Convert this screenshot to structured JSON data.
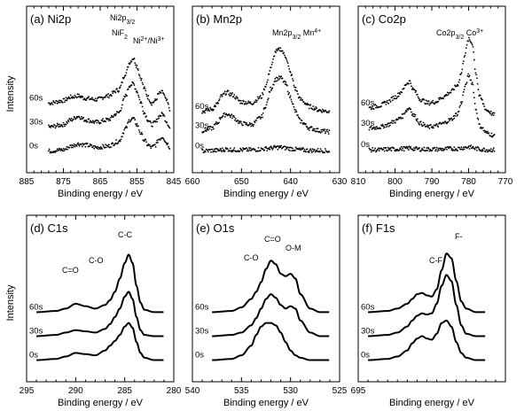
{
  "figure": {
    "ylabel_top": "Intensity",
    "ylabel_bottom": "Intensity",
    "xlabel": "Binding energy / eV"
  },
  "chart_data": [
    {
      "type": "line",
      "title": "(a) Ni2p",
      "xlabel": "Binding energy / eV",
      "ylabel": "Intensity",
      "xlim": [
        885,
        845
      ],
      "xticks": [
        885,
        875,
        865,
        855,
        845
      ],
      "style": "dots",
      "grid": false,
      "annotations": [
        "Ni2p3/2",
        "NiF2",
        "Ni2+/Ni3+"
      ],
      "series": [
        {
          "name": "60s",
          "x": [
            879,
            875,
            873,
            871,
            869,
            866,
            863,
            860,
            858,
            857,
            856,
            855,
            854,
            853,
            852,
            851,
            850,
            849,
            848,
            847,
            846
          ],
          "values": [
            0.8,
            0.84,
            0.9,
            0.92,
            0.88,
            0.86,
            0.92,
            1.02,
            1.3,
            1.48,
            1.55,
            1.42,
            1.22,
            1.04,
            0.9,
            0.8,
            0.84,
            0.96,
            0.98,
            0.84,
            0.7
          ]
        },
        {
          "name": "30s",
          "x": [
            879,
            875,
            873,
            871,
            869,
            866,
            863,
            860,
            858,
            857,
            856,
            855,
            854,
            853,
            852,
            851,
            850,
            849,
            848,
            847,
            846
          ],
          "values": [
            0.4,
            0.44,
            0.52,
            0.58,
            0.52,
            0.48,
            0.52,
            0.64,
            0.92,
            1.1,
            1.12,
            1.0,
            0.82,
            0.64,
            0.52,
            0.44,
            0.48,
            0.58,
            0.62,
            0.5,
            0.38
          ]
        },
        {
          "name": "0s",
          "x": [
            879,
            875,
            873,
            871,
            869,
            866,
            863,
            860,
            858,
            857,
            856,
            855,
            854,
            853,
            852,
            851,
            850,
            849,
            848,
            847,
            846
          ],
          "values": [
            0.0,
            0.02,
            0.08,
            0.12,
            0.1,
            0.06,
            0.08,
            0.16,
            0.38,
            0.52,
            0.54,
            0.44,
            0.3,
            0.18,
            0.1,
            0.06,
            0.1,
            0.2,
            0.24,
            0.14,
            0.06
          ]
        }
      ]
    },
    {
      "type": "line",
      "title": "(b) Mn2p",
      "xlabel": "Binding energy / eV",
      "ylabel": "Intensity",
      "xlim": [
        660,
        630
      ],
      "xticks": [
        660,
        650,
        640,
        630
      ],
      "style": "dots",
      "grid": false,
      "annotations": [
        "Mn2p3/2 Mn4+"
      ],
      "series": [
        {
          "name": "60s",
          "x": [
            658,
            656,
            655,
            654,
            653,
            652,
            650,
            648,
            646,
            645,
            644,
            643,
            642,
            641,
            640,
            639,
            638,
            636,
            634,
            632
          ],
          "values": [
            0.66,
            0.7,
            0.78,
            0.92,
            0.98,
            0.94,
            0.82,
            0.8,
            0.9,
            1.1,
            1.4,
            1.66,
            1.7,
            1.58,
            1.3,
            1.04,
            0.86,
            0.74,
            0.68,
            0.66
          ]
        },
        {
          "name": "30s",
          "x": [
            658,
            656,
            655,
            654,
            653,
            652,
            650,
            648,
            646,
            645,
            644,
            643,
            642,
            641,
            640,
            639,
            638,
            636,
            634,
            632
          ],
          "values": [
            0.34,
            0.38,
            0.46,
            0.58,
            0.62,
            0.58,
            0.46,
            0.44,
            0.56,
            0.76,
            1.04,
            1.2,
            1.22,
            1.12,
            0.9,
            0.66,
            0.5,
            0.38,
            0.34,
            0.32
          ]
        },
        {
          "name": "0s",
          "x": [
            658,
            656,
            655,
            654,
            653,
            652,
            650,
            648,
            646,
            645,
            644,
            643,
            642,
            641,
            640,
            639,
            638,
            636,
            634,
            632
          ],
          "values": [
            0.0,
            0.01,
            0.01,
            0.02,
            0.03,
            0.02,
            0.02,
            0.02,
            0.03,
            0.04,
            0.05,
            0.06,
            0.06,
            0.05,
            0.04,
            0.03,
            0.02,
            0.01,
            0.01,
            0.0
          ]
        }
      ]
    },
    {
      "type": "line",
      "title": "(c) Co2p",
      "xlabel": "Binding energy / eV",
      "ylabel": "Intensity",
      "xlim": [
        810,
        770
      ],
      "xticks": [
        810,
        800,
        790,
        780,
        770
      ],
      "style": "dots",
      "grid": false,
      "annotations": [
        "Co2p3/2 Co3+"
      ],
      "series": [
        {
          "name": "60s",
          "x": [
            807,
            804,
            802,
            800,
            798,
            797,
            796,
            795,
            793,
            791,
            789,
            787,
            785,
            783,
            782,
            781,
            780,
            779,
            778,
            777,
            775,
            773
          ],
          "values": [
            0.72,
            0.76,
            0.82,
            0.9,
            1.0,
            1.12,
            1.16,
            1.02,
            0.86,
            0.8,
            0.82,
            0.9,
            0.98,
            1.1,
            1.3,
            1.62,
            1.86,
            1.8,
            1.3,
            0.9,
            0.68,
            0.6
          ]
        },
        {
          "name": "30s",
          "x": [
            807,
            804,
            802,
            800,
            798,
            797,
            796,
            795,
            793,
            791,
            789,
            787,
            785,
            783,
            782,
            781,
            780,
            779,
            778,
            777,
            775,
            773
          ],
          "values": [
            0.38,
            0.4,
            0.44,
            0.5,
            0.58,
            0.68,
            0.72,
            0.6,
            0.46,
            0.4,
            0.42,
            0.46,
            0.52,
            0.62,
            0.8,
            1.06,
            1.26,
            1.14,
            0.7,
            0.42,
            0.3,
            0.26
          ]
        },
        {
          "name": "0s",
          "x": [
            807,
            804,
            802,
            800,
            798,
            797,
            796,
            795,
            793,
            791,
            789,
            787,
            785,
            783,
            782,
            781,
            780,
            779,
            778,
            777,
            775,
            773
          ],
          "values": [
            0.02,
            0.02,
            0.03,
            0.03,
            0.04,
            0.04,
            0.05,
            0.04,
            0.03,
            0.03,
            0.03,
            0.03,
            0.04,
            0.04,
            0.05,
            0.06,
            0.07,
            0.06,
            0.04,
            0.03,
            0.02,
            0.02
          ]
        }
      ]
    },
    {
      "type": "line",
      "title": "(d) C1s",
      "xlabel": "Binding energy / eV",
      "ylabel": "Intensity",
      "xlim": [
        295,
        280
      ],
      "xticks": [
        295,
        290,
        285,
        280
      ],
      "style": "line",
      "grid": false,
      "annotations": [
        "C=O",
        "C-O",
        "C-C"
      ],
      "series": [
        {
          "name": "60s",
          "x": [
            294,
            292,
            291,
            290,
            289,
            288,
            287,
            286.5,
            286,
            285.5,
            285,
            284.6,
            284.2,
            283.8,
            283.4,
            283,
            282,
            281
          ],
          "values": [
            0.8,
            0.82,
            0.86,
            0.94,
            0.9,
            0.86,
            0.92,
            1.0,
            1.14,
            1.36,
            1.62,
            1.76,
            1.62,
            1.24,
            0.96,
            0.84,
            0.8,
            0.8
          ]
        },
        {
          "name": "30s",
          "x": [
            294,
            292,
            291,
            290,
            289,
            288,
            287,
            286.5,
            286,
            285.5,
            285,
            284.6,
            284.2,
            283.8,
            283.4,
            283,
            282,
            281
          ],
          "values": [
            0.4,
            0.42,
            0.46,
            0.5,
            0.48,
            0.46,
            0.52,
            0.6,
            0.72,
            0.86,
            1.06,
            1.14,
            1.02,
            0.72,
            0.5,
            0.42,
            0.4,
            0.4
          ]
        },
        {
          "name": "0s",
          "x": [
            294,
            292,
            291,
            290,
            289,
            288,
            287,
            286.5,
            286,
            285.5,
            285,
            284.6,
            284.2,
            283.8,
            283.4,
            283,
            282,
            281
          ],
          "values": [
            0.0,
            0.02,
            0.06,
            0.12,
            0.1,
            0.08,
            0.16,
            0.24,
            0.32,
            0.42,
            0.56,
            0.62,
            0.54,
            0.3,
            0.12,
            0.04,
            0.0,
            0.0
          ]
        }
      ]
    },
    {
      "type": "line",
      "title": "(e) O1s",
      "xlabel": "Binding energy / eV",
      "ylabel": "Intensity",
      "xlim": [
        540,
        525
      ],
      "xticks": [
        540,
        535,
        530,
        525
      ],
      "style": "line",
      "grid": false,
      "annotations": [
        "C-O",
        "C=O",
        "O-M"
      ],
      "series": [
        {
          "name": "60s",
          "x": [
            538,
            536,
            535,
            534,
            533.5,
            533,
            532.5,
            532,
            531.5,
            531,
            530.5,
            530,
            529.5,
            529,
            528,
            527,
            526
          ],
          "values": [
            0.8,
            0.82,
            0.88,
            1.02,
            1.14,
            1.3,
            1.52,
            1.66,
            1.6,
            1.44,
            1.4,
            1.44,
            1.36,
            1.1,
            0.86,
            0.8,
            0.8
          ]
        },
        {
          "name": "30s",
          "x": [
            538,
            536,
            535,
            534,
            533.5,
            533,
            532.5,
            532,
            531.5,
            531,
            530.5,
            530,
            529.5,
            529,
            528,
            527,
            526
          ],
          "values": [
            0.4,
            0.42,
            0.46,
            0.58,
            0.7,
            0.86,
            1.02,
            1.1,
            1.04,
            0.92,
            0.86,
            0.9,
            0.86,
            0.66,
            0.46,
            0.4,
            0.4
          ]
        },
        {
          "name": "0s",
          "x": [
            538,
            536,
            535,
            534,
            533.5,
            533,
            532.5,
            532,
            531.5,
            531,
            530.5,
            530,
            529.5,
            529,
            528,
            527,
            526
          ],
          "values": [
            0.0,
            0.02,
            0.08,
            0.24,
            0.42,
            0.56,
            0.62,
            0.62,
            0.58,
            0.46,
            0.3,
            0.16,
            0.08,
            0.04,
            0.0,
            0.0,
            0.0
          ]
        }
      ]
    },
    {
      "type": "line",
      "title": "(f) F1s",
      "xlabel": "Binding energy / eV",
      "ylabel": "Intensity",
      "xlim": [
        695,
        680
      ],
      "xticks": [
        695
      ],
      "style": "line",
      "grid": false,
      "annotations": [
        "C-F",
        "F-"
      ],
      "series": [
        {
          "name": "60s",
          "x": [
            694,
            692,
            691,
            690,
            689.5,
            689,
            688.5,
            688,
            687.5,
            687,
            686.5,
            686,
            685.5,
            685,
            684.5,
            684,
            683,
            682
          ],
          "values": [
            0.8,
            0.82,
            0.86,
            0.94,
            1.02,
            1.1,
            1.12,
            1.08,
            1.06,
            1.18,
            1.5,
            1.78,
            1.7,
            1.32,
            0.98,
            0.86,
            0.8,
            0.8
          ]
        },
        {
          "name": "30s",
          "x": [
            694,
            692,
            691,
            690,
            689.5,
            689,
            688.5,
            688,
            687.5,
            687,
            686.5,
            686,
            685.5,
            685,
            684.5,
            684,
            683,
            682
          ],
          "values": [
            0.4,
            0.42,
            0.46,
            0.56,
            0.66,
            0.74,
            0.78,
            0.76,
            0.78,
            0.94,
            1.24,
            1.42,
            1.32,
            0.92,
            0.58,
            0.44,
            0.4,
            0.4
          ]
        },
        {
          "name": "0s",
          "x": [
            694,
            692,
            691,
            690,
            689.5,
            689,
            688.5,
            688,
            687.5,
            687,
            686.5,
            686,
            685.5,
            685,
            684.5,
            684,
            683,
            682
          ],
          "values": [
            0.0,
            0.02,
            0.06,
            0.16,
            0.28,
            0.36,
            0.4,
            0.36,
            0.34,
            0.44,
            0.62,
            0.66,
            0.56,
            0.3,
            0.12,
            0.04,
            0.0,
            0.0
          ]
        }
      ]
    }
  ]
}
